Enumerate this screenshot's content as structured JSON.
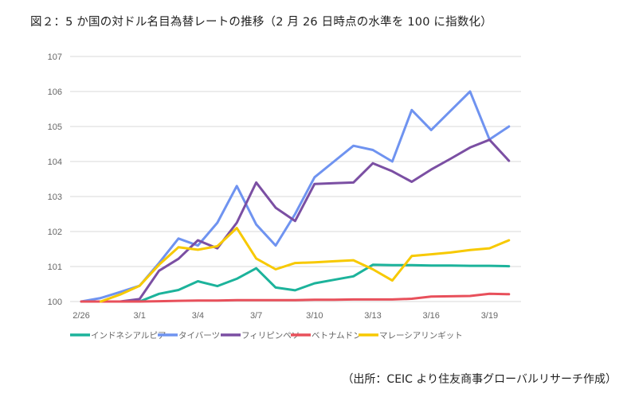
{
  "chart_data": {
    "type": "line",
    "title": "図２：5 か国の対ドル名目為替レートの推移（2 月 26 日時点の水準を 100 に指数化）",
    "source": "（出所：CEIC より住友商事グローバルリサーチ作成）",
    "xlabel": "",
    "ylabel": "",
    "ylim": [
      100,
      107
    ],
    "yticks": [
      "100",
      "101",
      "102",
      "103",
      "104",
      "105",
      "106",
      "107"
    ],
    "x": [
      "2/26",
      "2/27",
      "2/28",
      "3/1",
      "3/2",
      "3/3",
      "3/4",
      "3/5",
      "3/6",
      "3/7",
      "3/8",
      "3/9",
      "3/10",
      "3/11",
      "3/12",
      "3/13",
      "3/14",
      "3/15",
      "3/16",
      "3/17",
      "3/18",
      "3/19",
      "3/20"
    ],
    "xtick_labels": [
      "2/26",
      "3/1",
      "3/4",
      "3/7",
      "3/10",
      "3/13",
      "3/16",
      "3/19"
    ],
    "grid": true,
    "legend_position": "bottom",
    "series": [
      {
        "name": "インドネシアルピア",
        "color": "#1cb39b",
        "values": [
          null,
          null,
          null,
          100,
          100.22,
          100.33,
          100.58,
          100.44,
          100.65,
          100.95,
          100.4,
          100.32,
          100.52,
          100.62,
          100.72,
          101.05,
          101.04,
          101.04,
          101.03,
          101.03,
          101.02,
          101.02,
          101.01
        ]
      },
      {
        "name": "タイバーツ",
        "color": "#6f93f0",
        "values": [
          100,
          100.1,
          100.27,
          100.45,
          101.1,
          101.8,
          101.6,
          102.25,
          103.3,
          102.2,
          101.6,
          102.5,
          103.55,
          104.0,
          104.45,
          104.33,
          104.0,
          105.47,
          104.9,
          105.45,
          106.0,
          104.63,
          105.0
        ]
      },
      {
        "name": "フィリピンペソ",
        "color": "#7b4fa3",
        "values": [
          100,
          100,
          100,
          100.07,
          100.88,
          101.22,
          101.75,
          101.52,
          102.25,
          103.4,
          102.68,
          102.3,
          103.36,
          103.38,
          103.4,
          103.95,
          103.72,
          103.42,
          103.77,
          104.08,
          104.4,
          104.62,
          104.02
        ]
      },
      {
        "name": "ベトナムドン",
        "color": "#e8505b",
        "values": [
          100,
          100,
          100,
          100,
          100.01,
          100.02,
          100.03,
          100.03,
          100.04,
          100.04,
          100.04,
          100.04,
          100.05,
          100.05,
          100.06,
          100.06,
          100.06,
          100.08,
          100.14,
          100.15,
          100.16,
          100.22,
          100.21
        ]
      },
      {
        "name": "マレーシアリンギット",
        "color": "#f7c900",
        "values": [
          null,
          100,
          100.2,
          100.45,
          101.05,
          101.55,
          101.48,
          101.58,
          102.1,
          101.23,
          100.92,
          101.1,
          101.12,
          101.15,
          101.18,
          100.92,
          100.6,
          101.3,
          101.35,
          101.4,
          101.47,
          101.52,
          101.75
        ]
      }
    ]
  }
}
